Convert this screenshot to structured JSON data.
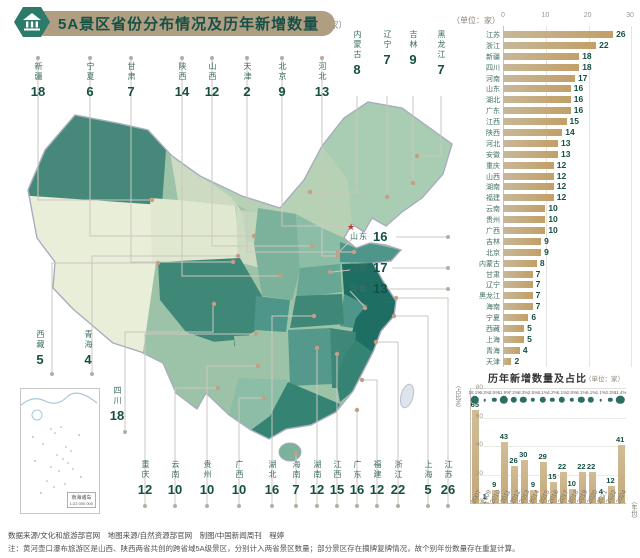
{
  "header": {
    "title": "5A景区省份分布情况及历年新增数量",
    "unit": "（单位：家）",
    "badge_icon": "pavilion-icon"
  },
  "map": {
    "inset_label": "南海诸岛",
    "inset_scale": "1:22 000 000",
    "callouts_top": [
      {
        "name": "新疆",
        "value": "18"
      },
      {
        "name": "宁夏",
        "value": "6"
      },
      {
        "name": "甘肃",
        "value": "7"
      },
      {
        "name": "陕西",
        "value": "14"
      },
      {
        "name": "山西",
        "value": "12"
      },
      {
        "name": "天津",
        "value": "2"
      },
      {
        "name": "北京",
        "value": "9"
      },
      {
        "name": "河北",
        "value": "13"
      }
    ],
    "callouts_top_right": [
      {
        "name": "内蒙古",
        "value": "8"
      },
      {
        "name": "辽宁",
        "value": "7"
      },
      {
        "name": "吉林",
        "value": "9"
      },
      {
        "name": "黑龙江",
        "value": "7"
      }
    ],
    "callouts_left": [
      {
        "name": "西藏",
        "value": "5"
      },
      {
        "name": "青海",
        "value": "4"
      },
      {
        "name": "四川",
        "value": "18"
      }
    ],
    "callouts_right": [
      {
        "name": "山东",
        "value": "16"
      },
      {
        "name": "河南",
        "value": "17"
      },
      {
        "name": "安徽",
        "value": "13"
      }
    ],
    "callouts_bottom": [
      {
        "name": "重庆",
        "value": "12"
      },
      {
        "name": "云南",
        "value": "10"
      },
      {
        "name": "贵州",
        "value": "10"
      },
      {
        "name": "广西",
        "value": "10"
      },
      {
        "name": "湖北",
        "value": "16"
      },
      {
        "name": "海南",
        "value": "7"
      },
      {
        "name": "湖南",
        "value": "12"
      },
      {
        "name": "江西",
        "value": "15"
      },
      {
        "name": "广东",
        "value": "16"
      },
      {
        "name": "福建",
        "value": "12"
      },
      {
        "name": "浙江",
        "value": "22"
      },
      {
        "name": "上海",
        "value": "5"
      },
      {
        "name": "江苏",
        "value": "26"
      }
    ]
  },
  "chart_data": [
    {
      "type": "bar",
      "orientation": "horizontal",
      "unit": "（单位：家）",
      "categories": [
        "江苏",
        "浙江",
        "新疆",
        "四川",
        "河南",
        "山东",
        "湖北",
        "广东",
        "江西",
        "陕西",
        "河北",
        "安徽",
        "重庆",
        "山西",
        "湖南",
        "福建",
        "云南",
        "贵州",
        "广西",
        "吉林",
        "北京",
        "内蒙古",
        "甘肃",
        "辽宁",
        "黑龙江",
        "海南",
        "宁夏",
        "西藏",
        "上海",
        "青海",
        "天津"
      ],
      "values": [
        26,
        22,
        18,
        18,
        17,
        16,
        16,
        16,
        15,
        14,
        13,
        13,
        12,
        12,
        12,
        12,
        10,
        10,
        10,
        9,
        9,
        8,
        7,
        7,
        7,
        7,
        6,
        5,
        5,
        4,
        2
      ],
      "xlim": [
        0,
        30
      ],
      "xticks": [
        0,
        10,
        20,
        30
      ],
      "grid": true
    },
    {
      "type": "bar",
      "title": "历年新增数量及占比",
      "unit": "（单位：家）",
      "ylabel": "（占比%）",
      "xlabel": "（年份）",
      "categories": [
        "2007",
        "2009",
        "2010",
        "2011",
        "2012",
        "2013",
        "2014",
        "2015",
        "2016",
        "2017",
        "2018",
        "2019",
        "2020",
        "2021",
        "2022",
        "2024"
      ],
      "values": [
        65,
        1,
        9,
        43,
        26,
        30,
        9,
        29,
        15,
        22,
        10,
        22,
        22,
        4,
        12,
        41
      ],
      "percentages": [
        "18.1%",
        "0.3%",
        "2.5%",
        "11.9%",
        "7.2%",
        "8.3%",
        "2.5%",
        "8.1%",
        "4.2%",
        "6.1%",
        "2.8%",
        "6.1%",
        "6.1%",
        "1.1%",
        "3.3%",
        "11.4%"
      ],
      "ylim": [
        0,
        80
      ],
      "yticks": [
        80,
        60,
        40,
        20,
        0
      ],
      "grid": true,
      "legend_note": "圆点大小表示占比"
    }
  ],
  "footer": {
    "line1": "数据来源/文化和旅游部官网　地图来源/自然资源部官网　制图/中国新闻周刊　程婷",
    "line2": "注：黄河壶口瀑布旅游区是山西、陕西两省共创的跨省域5A级景区，分别计入两省景区数量；部分景区存在摘牌复牌情况，故个别年份数量存在重复计算。"
  },
  "colors": {
    "accent_teal": "#2c7a69",
    "title_text": "#175045",
    "pill_tan": "#b09e83",
    "bar_gold": "#c2a06a",
    "value_teal": "#155043",
    "map_dark": "#1e6e63",
    "map_light": "#e9eed9",
    "capital_dot": "#c69e86",
    "beijing_star": "#c0392b"
  }
}
